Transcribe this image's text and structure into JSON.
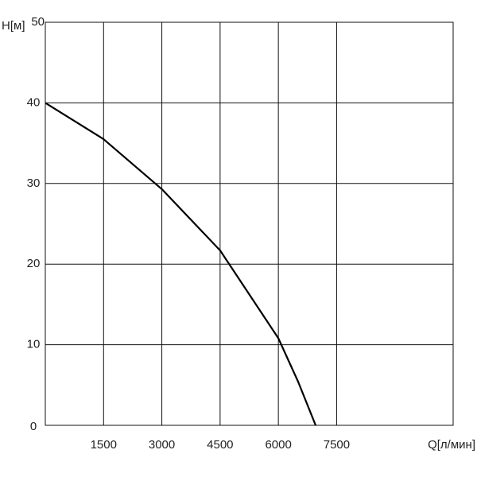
{
  "chart_data": {
    "type": "line",
    "x_label": "Q[л/мин]",
    "y_label": "H[м]",
    "x": [
      0,
      1500,
      3000,
      4500,
      6000,
      6510,
      6960
    ],
    "series": [
      {
        "color": "#000000",
        "values": [
          40,
          35.5,
          29.3,
          21.7,
          10.8,
          5.4,
          0
        ]
      }
    ],
    "xlim": [
      0,
      10500
    ],
    "xticks": [
      1500,
      3000,
      4500,
      6000,
      7500
    ],
    "ylim": [
      0,
      50
    ],
    "yticks": [
      0,
      10,
      20,
      30,
      40,
      50
    ],
    "grid": true
  }
}
